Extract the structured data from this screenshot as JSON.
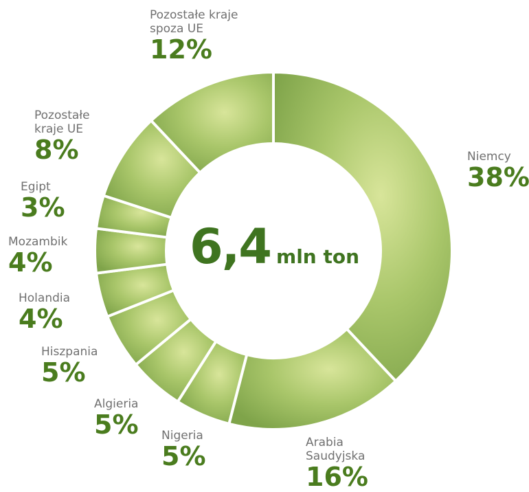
{
  "chart_data": {
    "type": "donut",
    "categories": [
      "Niemcy",
      "Arabia Saudyjska",
      "Nigeria",
      "Algieria",
      "Hiszpania",
      "Holandia",
      "Mozambik",
      "Egipt",
      "Pozostałe kraje UE",
      "Pozostałe kraje spoza UE"
    ],
    "values": [
      38,
      16,
      5,
      5,
      5,
      4,
      4,
      3,
      8,
      12
    ],
    "value_labels": [
      "38%",
      "16%",
      "5%",
      "5%",
      "5%",
      "4%",
      "4%",
      "3%",
      "8%",
      "12%"
    ],
    "center_value": "6,4",
    "center_unit": "mln ton"
  }
}
